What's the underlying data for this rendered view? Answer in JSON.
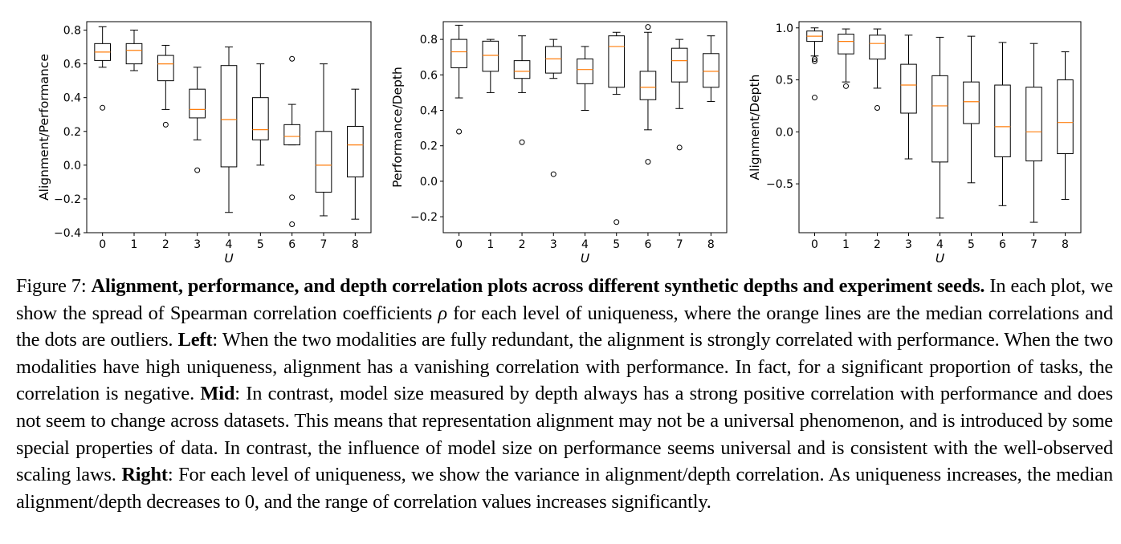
{
  "chart_data": [
    {
      "type": "box",
      "xlabel": "U",
      "ylabel": "Alignment/Performance",
      "ylim": [
        -0.4,
        0.85
      ],
      "yticks": [
        -0.4,
        -0.2,
        0.0,
        0.2,
        0.4,
        0.6,
        0.8
      ],
      "ytick_labels": [
        "−0.4",
        "−0.2",
        "0.0",
        "0.2",
        "0.4",
        "0.6",
        "0.8"
      ],
      "categories": [
        "0",
        "1",
        "2",
        "3",
        "4",
        "5",
        "6",
        "7",
        "8"
      ],
      "boxes": [
        {
          "whislo": 0.58,
          "q1": 0.62,
          "med": 0.67,
          "q3": 0.72,
          "whishi": 0.82,
          "fliers": [
            0.34
          ]
        },
        {
          "whislo": 0.56,
          "q1": 0.6,
          "med": 0.68,
          "q3": 0.72,
          "whishi": 0.8,
          "fliers": []
        },
        {
          "whislo": 0.33,
          "q1": 0.5,
          "med": 0.6,
          "q3": 0.65,
          "whishi": 0.71,
          "fliers": [
            0.24
          ]
        },
        {
          "whislo": 0.15,
          "q1": 0.28,
          "med": 0.33,
          "q3": 0.45,
          "whishi": 0.58,
          "fliers": [
            -0.03
          ]
        },
        {
          "whislo": -0.28,
          "q1": -0.01,
          "med": 0.27,
          "q3": 0.59,
          "whishi": 0.7,
          "fliers": []
        },
        {
          "whislo": 0.0,
          "q1": 0.15,
          "med": 0.21,
          "q3": 0.4,
          "whishi": 0.6,
          "fliers": []
        },
        {
          "whislo": 0.12,
          "q1": 0.12,
          "med": 0.17,
          "q3": 0.24,
          "whishi": 0.36,
          "fliers": [
            0.63,
            -0.19,
            -0.35
          ]
        },
        {
          "whislo": -0.3,
          "q1": -0.16,
          "med": 0.0,
          "q3": 0.2,
          "whishi": 0.6,
          "fliers": []
        },
        {
          "whislo": -0.32,
          "q1": -0.07,
          "med": 0.12,
          "q3": 0.23,
          "whishi": 0.45,
          "fliers": []
        }
      ]
    },
    {
      "type": "box",
      "xlabel": "U",
      "ylabel": "Performance/Depth",
      "ylim": [
        -0.29,
        0.9
      ],
      "yticks": [
        -0.2,
        0.0,
        0.2,
        0.4,
        0.6,
        0.8
      ],
      "ytick_labels": [
        "−0.2",
        "0.0",
        "0.2",
        "0.4",
        "0.6",
        "0.8"
      ],
      "categories": [
        "0",
        "1",
        "2",
        "3",
        "4",
        "5",
        "6",
        "7",
        "8"
      ],
      "boxes": [
        {
          "whislo": 0.47,
          "q1": 0.64,
          "med": 0.73,
          "q3": 0.8,
          "whishi": 0.88,
          "fliers": [
            0.28
          ]
        },
        {
          "whislo": 0.5,
          "q1": 0.62,
          "med": 0.71,
          "q3": 0.79,
          "whishi": 0.8,
          "fliers": []
        },
        {
          "whislo": 0.5,
          "q1": 0.58,
          "med": 0.62,
          "q3": 0.68,
          "whishi": 0.82,
          "fliers": [
            0.22
          ]
        },
        {
          "whislo": 0.58,
          "q1": 0.61,
          "med": 0.69,
          "q3": 0.76,
          "whishi": 0.8,
          "fliers": [
            0.04
          ]
        },
        {
          "whislo": 0.4,
          "q1": 0.55,
          "med": 0.63,
          "q3": 0.69,
          "whishi": 0.76,
          "fliers": []
        },
        {
          "whislo": 0.49,
          "q1": 0.53,
          "med": 0.76,
          "q3": 0.82,
          "whishi": 0.84,
          "fliers": [
            -0.23
          ]
        },
        {
          "whislo": 0.29,
          "q1": 0.46,
          "med": 0.53,
          "q3": 0.62,
          "whishi": 0.84,
          "fliers": [
            0.87,
            0.11
          ]
        },
        {
          "whislo": 0.41,
          "q1": 0.56,
          "med": 0.68,
          "q3": 0.75,
          "whishi": 0.8,
          "fliers": [
            0.19
          ]
        },
        {
          "whislo": 0.45,
          "q1": 0.53,
          "med": 0.62,
          "q3": 0.72,
          "whishi": 0.82,
          "fliers": []
        }
      ]
    },
    {
      "type": "box",
      "xlabel": "U",
      "ylabel": "Alignment/Depth",
      "ylim": [
        -0.97,
        1.06
      ],
      "yticks": [
        -0.5,
        0.0,
        0.5,
        1.0
      ],
      "ytick_labels": [
        "−0.5",
        "0.0",
        "0.5",
        "1.0"
      ],
      "categories": [
        "0",
        "1",
        "2",
        "3",
        "4",
        "5",
        "6",
        "7",
        "8"
      ],
      "boxes": [
        {
          "whislo": 0.73,
          "q1": 0.87,
          "med": 0.92,
          "q3": 0.97,
          "whishi": 1.0,
          "fliers": [
            0.7,
            0.68,
            0.33
          ]
        },
        {
          "whislo": 0.48,
          "q1": 0.75,
          "med": 0.87,
          "q3": 0.94,
          "whishi": 0.99,
          "fliers": [
            0.44
          ]
        },
        {
          "whislo": 0.42,
          "q1": 0.7,
          "med": 0.85,
          "q3": 0.93,
          "whishi": 0.99,
          "fliers": [
            0.23
          ]
        },
        {
          "whislo": -0.26,
          "q1": 0.18,
          "med": 0.45,
          "q3": 0.65,
          "whishi": 0.93,
          "fliers": []
        },
        {
          "whislo": -0.83,
          "q1": -0.29,
          "med": 0.25,
          "q3": 0.54,
          "whishi": 0.91,
          "fliers": []
        },
        {
          "whislo": -0.49,
          "q1": 0.08,
          "med": 0.29,
          "q3": 0.48,
          "whishi": 0.92,
          "fliers": []
        },
        {
          "whislo": -0.71,
          "q1": -0.24,
          "med": 0.05,
          "q3": 0.45,
          "whishi": 0.86,
          "fliers": []
        },
        {
          "whislo": -0.87,
          "q1": -0.28,
          "med": 0.0,
          "q3": 0.43,
          "whishi": 0.85,
          "fliers": []
        },
        {
          "whislo": -0.65,
          "q1": -0.21,
          "med": 0.09,
          "q3": 0.5,
          "whishi": 0.77,
          "fliers": []
        }
      ]
    }
  ],
  "caption": {
    "label": "Figure 7: ",
    "title": "Alignment, performance, and depth correlation plots across different synthetic depths and experiment seeds.",
    "text1": " In each plot, we show the spread of Spearman correlation coefficients ",
    "rho": "ρ",
    "text2": " for each level of uniqueness, where the orange lines are the median correlations and the dots are outliers. ",
    "left_label": "Left",
    "left_text": ": When the two modalities are fully redundant, the alignment is strongly correlated with performance. When the two modalities have high uniqueness, alignment has a vanishing correlation with performance. In fact, for a significant proportion of tasks, the correlation is negative. ",
    "mid_label": "Mid",
    "mid_text": ": In contrast, model size measured by depth always has a strong positive correlation with performance and does not seem to change across datasets. This means that representation alignment may not be a universal phenomenon, and is introduced by some special properties of data. In contrast, the influence of model size on performance seems universal and is consistent with the well-observed scaling laws. ",
    "right_label": "Right",
    "right_text": ": For each level of uniqueness, we show the variance in alignment/depth correlation. As uniqueness increases, the median alignment/depth decreases to 0, and the range of correlation values increases significantly."
  },
  "colors": {
    "median": "#ff7f0e",
    "box": "#000000"
  }
}
